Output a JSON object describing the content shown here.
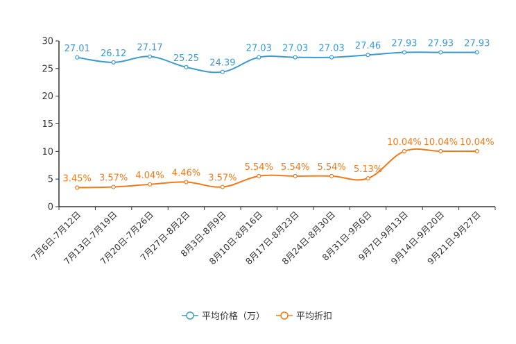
{
  "chart_data": {
    "type": "line",
    "categories": [
      "7月6日-7月12日",
      "7月13日-7月19日",
      "7月20日-7月26日",
      "7月27日-8月2日",
      "8月3日-8月9日",
      "8月10日-8月16日",
      "8月17日-8月23日",
      "8月24日-8月30日",
      "8月31日-9月6日",
      "9月7日-9月13日",
      "9月14日-9月20日",
      "9月21日-9月27日"
    ],
    "ylim": [
      0,
      30
    ],
    "yticks": [
      0,
      5,
      10,
      15,
      20,
      25,
      30
    ],
    "legend_position": "bottom-center",
    "series": [
      {
        "name": "平均价格（万）",
        "color": "#3a9ad2",
        "values": [
          27.01,
          26.12,
          27.17,
          25.25,
          24.39,
          27.03,
          27.03,
          27.03,
          27.46,
          27.93,
          27.93,
          27.93
        ],
        "labels": [
          "27.01",
          "26.12",
          "27.17",
          "25.25",
          "24.39",
          "27.03",
          "27.03",
          "27.03",
          "27.46",
          "27.93",
          "27.93",
          "27.93"
        ]
      },
      {
        "name": "平均折扣",
        "color": "#f07a1a",
        "values": [
          3.45,
          3.57,
          4.04,
          4.46,
          3.57,
          5.54,
          5.54,
          5.54,
          5.13,
          10.04,
          10.04,
          10.04
        ],
        "labels": [
          "3.45%",
          "3.57%",
          "4.04%",
          "4.46%",
          "3.57%",
          "5.54%",
          "5.54%",
          "5.54%",
          "5.13%",
          "10.04%",
          "10.04%",
          "10.04%"
        ]
      }
    ]
  }
}
